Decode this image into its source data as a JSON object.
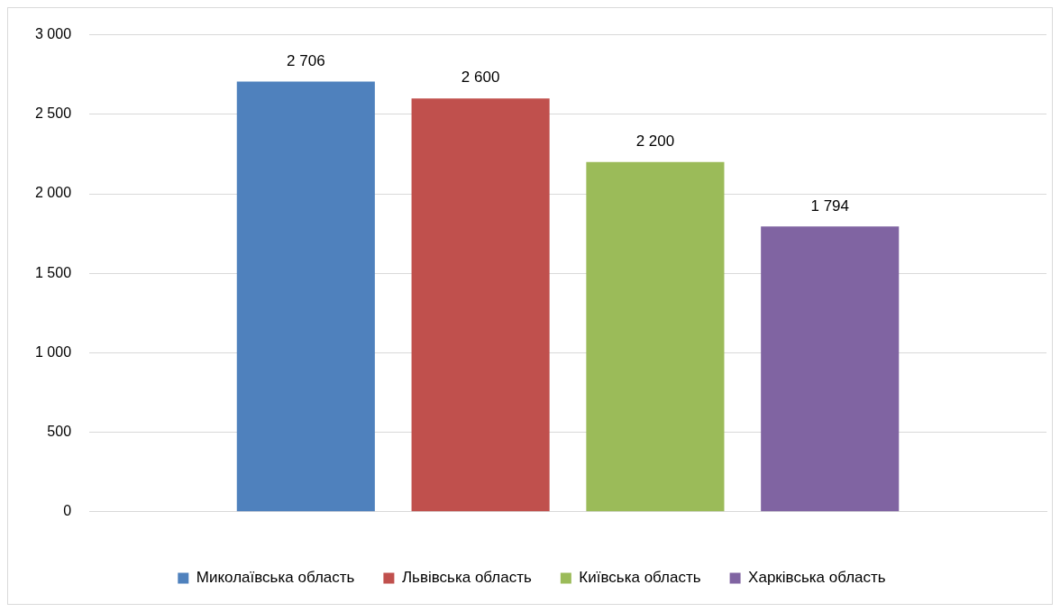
{
  "chart_data": {
    "type": "bar",
    "categories": [
      null
    ],
    "series": [
      {
        "name": "Миколаївська область",
        "color": "#4f81bd",
        "values": [
          2706
        ],
        "value_labels": [
          "2 706"
        ]
      },
      {
        "name": "Львівська область",
        "color": "#c0504d",
        "values": [
          2600
        ],
        "value_labels": [
          "2 600"
        ]
      },
      {
        "name": "Київська область",
        "color": "#9bbb59",
        "values": [
          2200
        ],
        "value_labels": [
          "2 200"
        ]
      },
      {
        "name": "Харківська область",
        "color": "#8064a2",
        "values": [
          1794
        ],
        "value_labels": [
          "1 794"
        ]
      }
    ],
    "ylim": [
      0,
      3000
    ],
    "yticks": [
      {
        "value": 0,
        "label": "0"
      },
      {
        "value": 500,
        "label": "500"
      },
      {
        "value": 1000,
        "label": "1 000"
      },
      {
        "value": 1500,
        "label": "1 500"
      },
      {
        "value": 2000,
        "label": "2 000"
      },
      {
        "value": 2500,
        "label": "2 500"
      },
      {
        "value": 3000,
        "label": "3 000"
      }
    ],
    "grid": "y",
    "legend": "bottom"
  }
}
